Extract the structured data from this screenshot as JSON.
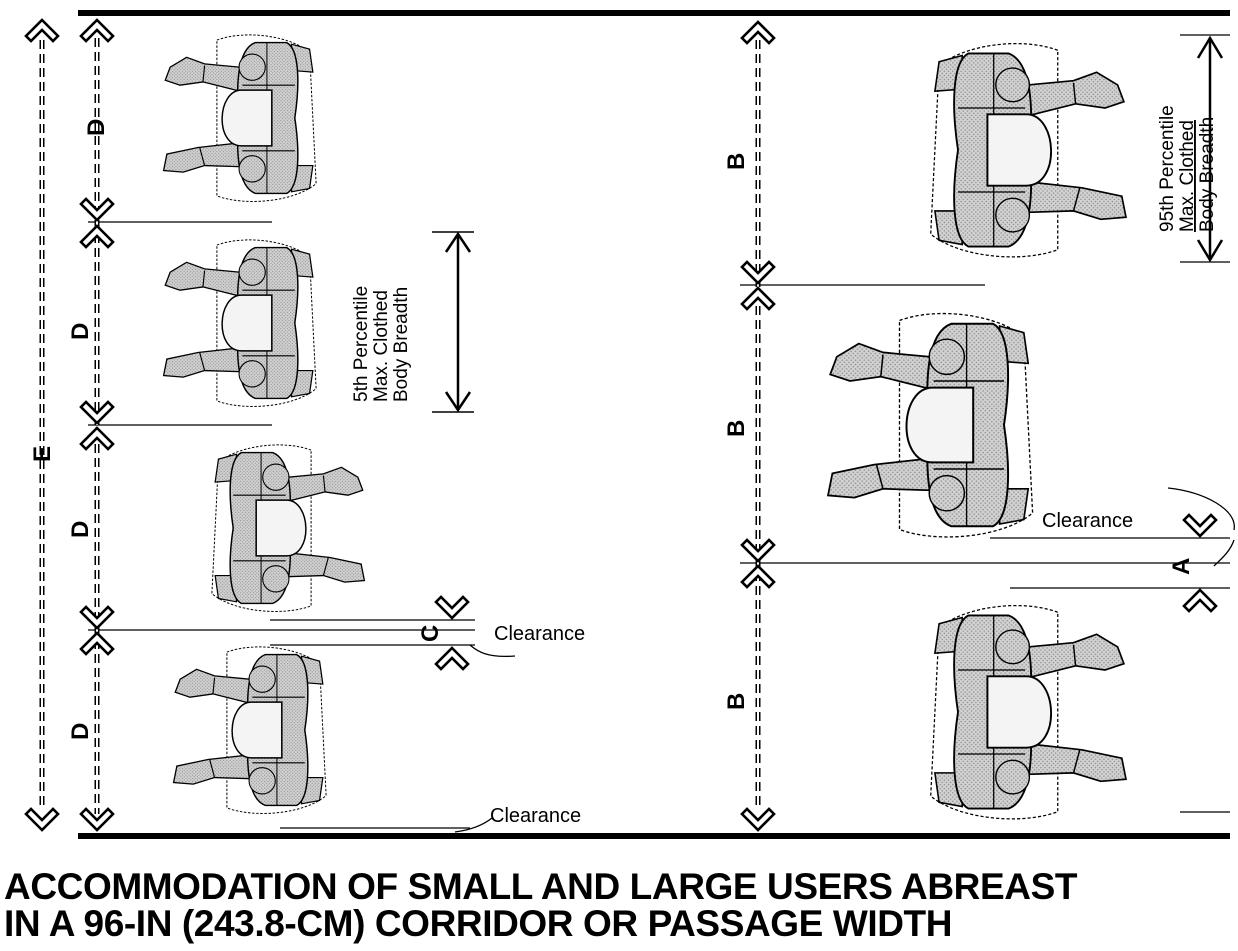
{
  "labels": {
    "dim_a": "A",
    "dim_b": "B",
    "dim_c": "C",
    "dim_d": "D",
    "dim_e": "E",
    "clearance": "Clearance",
    "pct5": [
      "5th Percentile",
      "Max. Clothed",
      "Body Breadth"
    ],
    "pct95": [
      "95th Percentile",
      "Max. Clothed",
      "Body Breadth"
    ]
  },
  "caption": {
    "line1": "ACCOMMODATION OF SMALL AND LARGE USERS ABREAST",
    "line2": "IN A 96-IN (243.8-CM) CORRIDOR OR PASSAGE WIDTH"
  },
  "colors": {
    "ink": "#000000",
    "body_fill": "#c8c8c8",
    "head_fill": "#f4f4f4",
    "paper": "#ffffff"
  }
}
